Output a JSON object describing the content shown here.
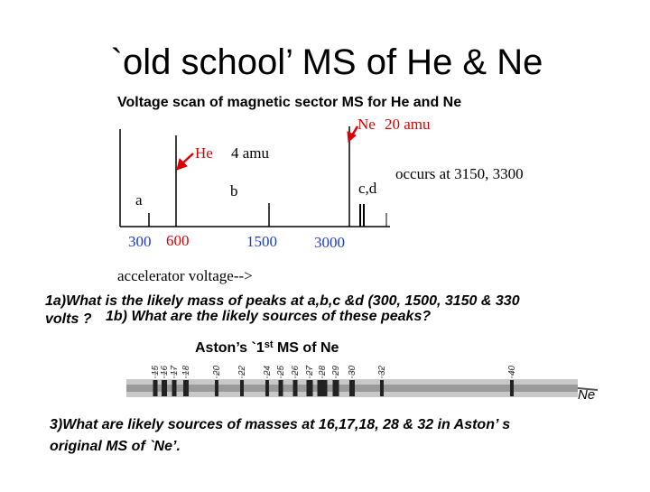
{
  "title": "`old school’ MS of He & Ne",
  "figure": {
    "caption": "Voltage scan of magnetic sector MS for He and Ne",
    "he_label": "He",
    "he_mass": "4 amu",
    "ne_label": "Ne",
    "ne_mass": "20 amu",
    "note": "occurs at 3150, 3300",
    "peak_a": "a",
    "peak_b": "b",
    "peak_cd": "c,d",
    "x_labels": [
      "300",
      "600",
      "1500",
      "3000"
    ],
    "x_title": "accelerator voltage-->"
  },
  "question_1": {
    "line_1": "1a)What is the likely mass of peaks at a,b,c &d (300, 1500, 3150 & 330",
    "line_2a": "volts ?",
    "line_2b": "1b) What are the likely sources of these peaks?"
  },
  "aston": {
    "title_a": "Aston’s `1",
    "title_sup": "st",
    "title_b": " MS of Ne",
    "masses": [
      "15",
      "16",
      "17",
      "18",
      "20",
      "22",
      "24",
      "25",
      "26",
      "27",
      "28",
      "29",
      "30",
      "32",
      "40"
    ],
    "element": "Ne"
  },
  "question_3": {
    "line_1": "3)What are likely sources of masses at 16,17,18, 28 & 32 in Aston’ s",
    "line_2": "original MS of `Ne’."
  }
}
